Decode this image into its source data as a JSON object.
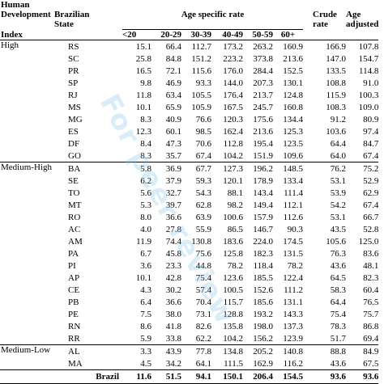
{
  "header": {
    "col_hdi": [
      "Human",
      "Development",
      "Index"
    ],
    "col_state": "Brazilian State",
    "age_specific": "Age specific rate",
    "age_groups": [
      "<20",
      "20-29",
      "30-39",
      "40-49",
      "50-59",
      "60+"
    ],
    "crude": [
      "Crude",
      "rate"
    ],
    "adjusted": [
      "Age",
      "adjusted"
    ]
  },
  "groups": [
    {
      "label": "High",
      "rows": [
        {
          "state": "RS",
          "v": [
            "15.1",
            "66.4",
            "112.7",
            "173.2",
            "263.2",
            "160.9",
            "166.9",
            "107.8"
          ]
        },
        {
          "state": "SC",
          "v": [
            "25.8",
            "84.8",
            "151.2",
            "223.2",
            "373.8",
            "213.6",
            "147.0",
            "154.7"
          ]
        },
        {
          "state": "PR",
          "v": [
            "16.5",
            "72.1",
            "115.6",
            "176.0",
            "284.4",
            "152.5",
            "133.5",
            "114.8"
          ]
        },
        {
          "state": "SP",
          "v": [
            "9.8",
            "46.9",
            "93.3",
            "144.0",
            "207.3",
            "130.1",
            "108.8",
            "91.0"
          ]
        },
        {
          "state": "RJ",
          "v": [
            "11.8",
            "63.4",
            "105.5",
            "176.4",
            "213.7",
            "124.8",
            "115.9",
            "100.3"
          ]
        },
        {
          "state": "MS",
          "v": [
            "10.1",
            "65.9",
            "105.9",
            "167.5",
            "245.7",
            "160.8",
            "108.3",
            "109.0"
          ]
        },
        {
          "state": "MG",
          "v": [
            "8.3",
            "40.9",
            "76.6",
            "120.3",
            "175.6",
            "134.4",
            "91.2",
            "80.9"
          ]
        },
        {
          "state": "ES",
          "v": [
            "12.3",
            "60.1",
            "98.5",
            "162.4",
            "213.6",
            "125.3",
            "103.6",
            "97.4"
          ]
        },
        {
          "state": "DF",
          "v": [
            "8.4",
            "47.3",
            "70.6",
            "112.8",
            "195.4",
            "123.5",
            "64.4",
            "84.7"
          ]
        },
        {
          "state": "GO",
          "v": [
            "8.3",
            "35.7",
            "67.4",
            "104.2",
            "151.9",
            "109.6",
            "64.0",
            "67.4"
          ]
        }
      ]
    },
    {
      "label": "Medium-High",
      "rows": [
        {
          "state": "BA",
          "v": [
            "5.8",
            "36.9",
            "67.7",
            "127.3",
            "196.2",
            "148.5",
            "76.2",
            "75.2"
          ]
        },
        {
          "state": "SE",
          "v": [
            "6.2",
            "37.9",
            "59.3",
            "120.1",
            "178.9",
            "133.4",
            "53.1",
            "52.9"
          ]
        },
        {
          "state": "TO",
          "v": [
            "5.6",
            "32.7",
            "54.3",
            "88.1",
            "143.4",
            "111.4",
            "53.9",
            "62.9"
          ]
        },
        {
          "state": "MT",
          "v": [
            "5.3",
            "39.7",
            "62.8",
            "98.2",
            "149.4",
            "112.1",
            "54.2",
            "67.4"
          ]
        },
        {
          "state": "RO",
          "v": [
            "8.0",
            "36.6",
            "63.9",
            "100.6",
            "157.9",
            "112.6",
            "53.1",
            "66.7"
          ]
        },
        {
          "state": "AC",
          "v": [
            "4.0",
            "27.8",
            "55.9",
            "86.5",
            "146.7",
            "90.3",
            "43.5",
            "52.8"
          ]
        },
        {
          "state": "AM",
          "v": [
            "11.9",
            "74.4",
            "130.8",
            "183.6",
            "224.0",
            "174.5",
            "105.6",
            "125.0"
          ]
        },
        {
          "state": "PA",
          "v": [
            "6.7",
            "45.8",
            "75.6",
            "125.8",
            "182.3",
            "131.5",
            "76.3",
            "83.6"
          ]
        },
        {
          "state": "PI",
          "v": [
            "3.6",
            "23.3",
            "44.8",
            "78.2",
            "118.4",
            "78.2",
            "43.6",
            "48.1"
          ]
        },
        {
          "state": "AP",
          "v": [
            "10.1",
            "42.8",
            "75.4",
            "123.6",
            "185.5",
            "122.4",
            "64.5",
            "82.3"
          ]
        },
        {
          "state": "CE",
          "v": [
            "4.3",
            "30.2",
            "57.4",
            "100.5",
            "152.6",
            "111.2",
            "58.3",
            "60.4"
          ]
        },
        {
          "state": "PB",
          "v": [
            "6.4",
            "36.6",
            "70.4",
            "115.7",
            "185.6",
            "131.1",
            "64.4",
            "76.5"
          ]
        },
        {
          "state": "PE",
          "v": [
            "7.5",
            "38.0",
            "73.1",
            "128.8",
            "193.2",
            "143.3",
            "75.4",
            "75.7"
          ]
        },
        {
          "state": "RN",
          "v": [
            "8.6",
            "41.8",
            "82.6",
            "135.8",
            "198.0",
            "137.3",
            "78.3",
            "86.8"
          ]
        },
        {
          "state": "RR",
          "v": [
            "5.9",
            "33.8",
            "62.2",
            "104.2",
            "156.2",
            "123.9",
            "51.7",
            "69.4"
          ]
        }
      ]
    },
    {
      "label": "Medium-Low",
      "rows": [
        {
          "state": "AL",
          "v": [
            "3.3",
            "43.9",
            "77.8",
            "134.8",
            "205.2",
            "140.8",
            "88.8",
            "84.9"
          ]
        },
        {
          "state": "MA",
          "v": [
            "4.5",
            "34.2",
            "64.1",
            "111.5",
            "162.9",
            "116.2",
            "43.6",
            "67.5"
          ]
        }
      ]
    }
  ],
  "total": {
    "state": "Brazil",
    "v": [
      "11.6",
      "51.5",
      "94.1",
      "150.1",
      "206.4",
      "154.5",
      "93.6",
      "93.6"
    ]
  },
  "watermark": "For peer review"
}
